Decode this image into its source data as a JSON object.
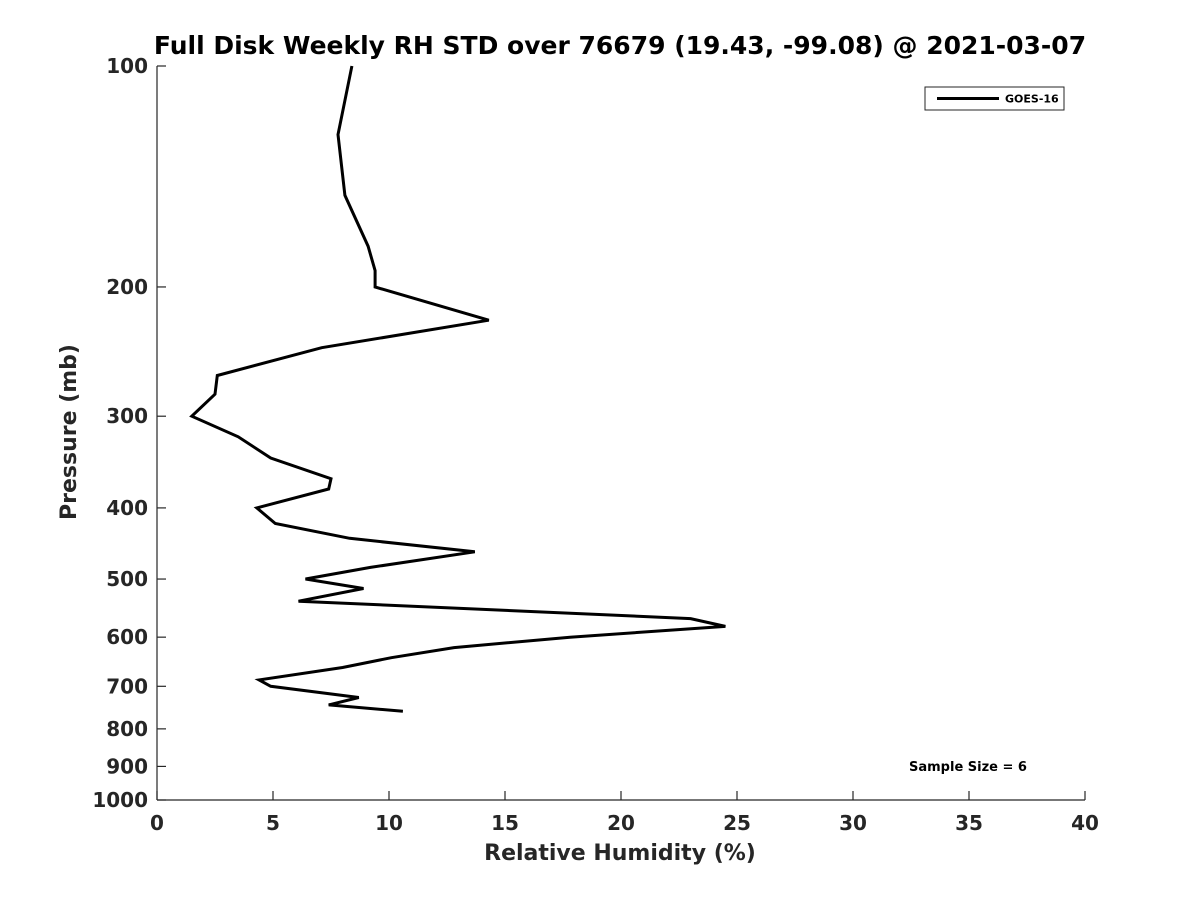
{
  "chart_data": {
    "type": "line",
    "title": "Full Disk Weekly RH STD over 76679 (19.43, -99.08) @ 2021-03-07",
    "xlabel": "Relative Humidity (%)",
    "ylabel": "Pressure (mb)",
    "xlim": [
      0,
      40
    ],
    "ylim": [
      100,
      1000
    ],
    "yscale": "log",
    "y_reversed": true,
    "grid": false,
    "x_ticks": [
      0,
      5,
      10,
      15,
      20,
      25,
      30,
      35,
      40
    ],
    "y_ticks": [
      100,
      200,
      300,
      400,
      500,
      600,
      700,
      800,
      900,
      1000
    ],
    "legend": {
      "position": "top-right",
      "entries": [
        "GOES-16"
      ]
    },
    "annotation": "Sample Size = 6",
    "series": [
      {
        "name": "GOES-16",
        "color": "#000000",
        "points": [
          {
            "x": 8.4,
            "y": 100
          },
          {
            "x": 7.8,
            "y": 124
          },
          {
            "x": 8.1,
            "y": 150
          },
          {
            "x": 9.1,
            "y": 176
          },
          {
            "x": 9.4,
            "y": 190
          },
          {
            "x": 9.4,
            "y": 200
          },
          {
            "x": 14.3,
            "y": 222
          },
          {
            "x": 7.1,
            "y": 242
          },
          {
            "x": 2.6,
            "y": 264
          },
          {
            "x": 2.5,
            "y": 280
          },
          {
            "x": 1.5,
            "y": 300
          },
          {
            "x": 3.5,
            "y": 320
          },
          {
            "x": 4.9,
            "y": 342
          },
          {
            "x": 7.5,
            "y": 365
          },
          {
            "x": 7.4,
            "y": 377
          },
          {
            "x": 4.3,
            "y": 400
          },
          {
            "x": 5.1,
            "y": 420
          },
          {
            "x": 8.3,
            "y": 440
          },
          {
            "x": 13.7,
            "y": 459
          },
          {
            "x": 9.2,
            "y": 482
          },
          {
            "x": 6.4,
            "y": 500
          },
          {
            "x": 8.9,
            "y": 515
          },
          {
            "x": 6.1,
            "y": 536
          },
          {
            "x": 23.0,
            "y": 566
          },
          {
            "x": 24.5,
            "y": 580
          },
          {
            "x": 17.8,
            "y": 600
          },
          {
            "x": 12.8,
            "y": 620
          },
          {
            "x": 10.1,
            "y": 640
          },
          {
            "x": 8.0,
            "y": 660
          },
          {
            "x": 4.4,
            "y": 686
          },
          {
            "x": 4.9,
            "y": 700
          },
          {
            "x": 8.7,
            "y": 725
          },
          {
            "x": 7.4,
            "y": 742
          },
          {
            "x": 10.6,
            "y": 757
          }
        ]
      }
    ]
  }
}
